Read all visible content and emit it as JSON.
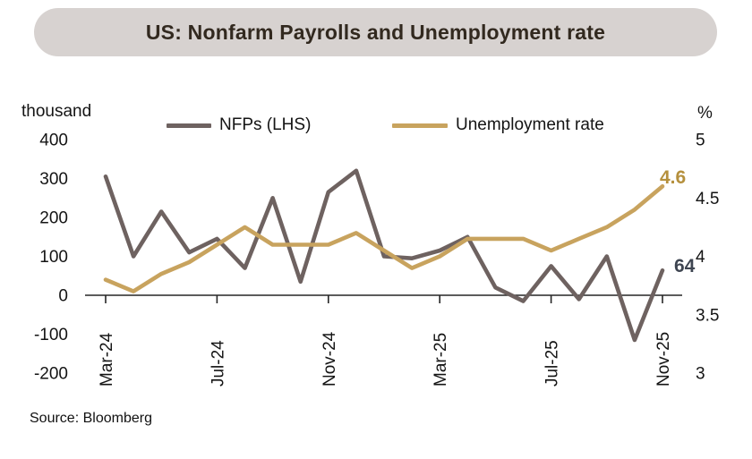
{
  "title": "US: Nonfarm Payrolls and Unemployment rate",
  "axis_left_unit": "thousand",
  "axis_right_unit": "%",
  "legend": {
    "nfp": "NFPs (LHS)",
    "unemployment": "Unemployment rate"
  },
  "annotations": {
    "unemployment_last": "4.6",
    "nfp_last": "64"
  },
  "source": "Source: Bloomberg",
  "colors": {
    "nfp": "#6E6260",
    "unemployment": "#C8A35E",
    "nfp_label": "#3E4551",
    "unemployment_label": "#B5903D",
    "title_pill_bg": "#D7D2D0",
    "axis": "#262626",
    "text": "#141414"
  },
  "chart_data": {
    "type": "line",
    "title": "US: Nonfarm Payrolls and Unemployment rate",
    "x": [
      "Mar-24",
      "Apr-24",
      "May-24",
      "Jun-24",
      "Jul-24",
      "Aug-24",
      "Sep-24",
      "Oct-24",
      "Nov-24",
      "Dec-24",
      "Jan-25",
      "Feb-25",
      "Mar-25",
      "Apr-25",
      "May-25",
      "Jun-25",
      "Jul-25",
      "Aug-25",
      "Sep-25",
      "Oct-25",
      "Nov-25"
    ],
    "x_tick_labels": [
      "Mar-24",
      "Jul-24",
      "Nov-24",
      "Mar-25",
      "Jul-25",
      "Nov-25"
    ],
    "series": [
      {
        "name": "NFPs (LHS)",
        "axis": "left",
        "color": "#6E6260",
        "values": [
          305,
          100,
          215,
          110,
          145,
          70,
          250,
          35,
          265,
          320,
          100,
          95,
          115,
          150,
          20,
          -15,
          75,
          -10,
          100,
          -115,
          64
        ]
      },
      {
        "name": "Unemployment rate",
        "axis": "right",
        "color": "#C8A35E",
        "values": [
          3.8,
          3.7,
          3.85,
          3.95,
          4.1,
          4.25,
          4.1,
          4.1,
          4.1,
          4.2,
          4.05,
          3.9,
          4.0,
          4.15,
          4.15,
          4.15,
          4.05,
          4.15,
          4.25,
          4.4,
          4.6
        ]
      }
    ],
    "left_axis": {
      "label": "thousand",
      "ticks": [
        400,
        300,
        200,
        100,
        0,
        -100,
        -200
      ],
      "range": [
        -200,
        400
      ]
    },
    "right_axis": {
      "label": "%",
      "ticks": [
        5,
        4.5,
        4,
        3.5,
        3
      ],
      "range": [
        3,
        5
      ]
    },
    "grid": false,
    "legend_position": "top"
  }
}
